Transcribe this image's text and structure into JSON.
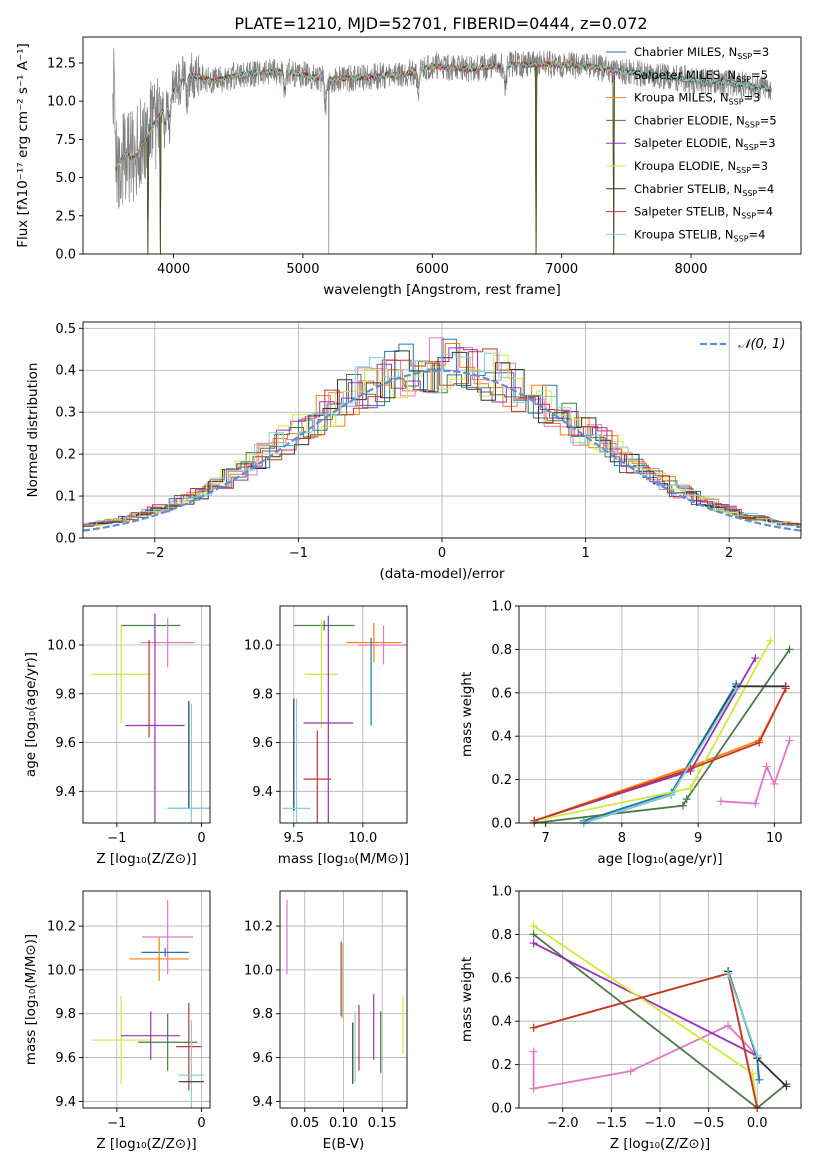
{
  "figure": {
    "title": "PLATE=1210, MJD=52701, FIBERID=0444, z=0.072"
  },
  "chart_data": [
    {
      "id": "spectrum",
      "type": "line",
      "xlabel": "wavelength [Angstrom, rest frame]",
      "ylabel": "Flux [fλ10⁻¹⁷ erg cm⁻² s⁻¹ A⁻¹]",
      "xlim": [
        3300,
        8850
      ],
      "ylim": [
        0,
        14.2
      ],
      "xticks": [
        4000,
        5000,
        6000,
        7000,
        8000
      ],
      "yticks": [
        0.0,
        2.5,
        5.0,
        7.5,
        10.0,
        12.5
      ],
      "ytick_labels": [
        "0.0",
        "2.5",
        "5.0",
        "7.5",
        "10.0",
        "12.5"
      ],
      "grid": false,
      "legend_position": "right",
      "series": [
        {
          "name": "Chabrier MILES, N_SSP=3",
          "label_main": "Chabrier MILES, N",
          "label_sub": "SSP",
          "label_tail": "=3",
          "color": "#1f77b4"
        },
        {
          "name": "Salpeter MILES, N_SSP=5",
          "label_main": "Salpeter MILES, N",
          "label_sub": "SSP",
          "label_tail": "=5",
          "color": "#e377c2"
        },
        {
          "name": "Kroupa MILES, N_SSP=3",
          "label_main": "Kroupa MILES, N",
          "label_sub": "SSP",
          "label_tail": "=3",
          "color": "#ff7f0e"
        },
        {
          "name": "Chabrier ELODIE, N_SSP=5",
          "label_main": "Chabrier ELODIE, N",
          "label_sub": "SSP",
          "label_tail": "=5",
          "color": "#4a7a4a"
        },
        {
          "name": "Salpeter ELODIE, N_SSP=3",
          "label_main": "Salpeter ELODIE, N",
          "label_sub": "SSP",
          "label_tail": "=3",
          "color": "#9b30b8"
        },
        {
          "name": "Kroupa ELODIE, N_SSP=3",
          "label_main": "Kroupa ELODIE, N",
          "label_sub": "SSP",
          "label_tail": "=3",
          "color": "#d4e83a"
        },
        {
          "name": "Chabrier STELIB, N_SSP=4",
          "label_main": "Chabrier STELIB, N",
          "label_sub": "SSP",
          "label_tail": "=4",
          "color": "#333333"
        },
        {
          "name": "Salpeter STELIB, N_SSP=4",
          "label_main": "Salpeter STELIB, N",
          "label_sub": "SSP",
          "label_tail": "=4",
          "color": "#c0392b"
        },
        {
          "name": "Kroupa STELIB, N_SSP=4",
          "label_main": "Kroupa STELIB, N",
          "label_sub": "SSP",
          "label_tail": "=4",
          "color": "#7fd3d8"
        }
      ],
      "data_color": "#808080",
      "continuum_points": [
        [
          3550,
          5.6
        ],
        [
          3620,
          6.5
        ],
        [
          3700,
          6.3
        ],
        [
          3800,
          7.8
        ],
        [
          3900,
          9.2
        ],
        [
          4000,
          10.6
        ],
        [
          4100,
          11.8
        ],
        [
          4200,
          11.6
        ],
        [
          4300,
          11.3
        ],
        [
          4500,
          11.7
        ],
        [
          4700,
          11.9
        ],
        [
          4900,
          11.9
        ],
        [
          5200,
          11.4
        ],
        [
          5500,
          11.6
        ],
        [
          5800,
          11.8
        ],
        [
          6000,
          12.3
        ],
        [
          6300,
          12.1
        ],
        [
          6600,
          12.4
        ],
        [
          6900,
          12.4
        ],
        [
          7200,
          12.3
        ],
        [
          7500,
          11.9
        ],
        [
          7800,
          11.6
        ],
        [
          8000,
          11.4
        ],
        [
          8300,
          11.2
        ],
        [
          8600,
          10.8
        ]
      ],
      "absorption_lines": [
        3934,
        3969,
        4102,
        4861,
        5175,
        5893,
        6563
      ],
      "data_dropouts": [
        5200,
        6800
      ],
      "model_dropouts": [
        3800,
        3900,
        6800,
        7400
      ]
    },
    {
      "id": "residual-hist",
      "type": "bar",
      "xlabel": "(data-model)/error",
      "ylabel": "Normed distribution",
      "xlim": [
        -2.5,
        2.5
      ],
      "ylim": [
        0,
        0.515
      ],
      "xticks": [
        -2,
        -1,
        0,
        1,
        2
      ],
      "xtick_labels": [
        "−2",
        "−1",
        "0",
        "1",
        "2"
      ],
      "yticks": [
        0.0,
        0.1,
        0.2,
        0.3,
        0.4,
        0.5
      ],
      "ytick_labels": [
        "0.0",
        "0.1",
        "0.2",
        "0.3",
        "0.4",
        "0.5"
      ],
      "grid": true,
      "legend": "𝒩(0, 1)",
      "legend_position": "top-right",
      "reference_curve": {
        "type": "normal",
        "mean": 0,
        "sigma": 1,
        "color": "#5b8fd6"
      },
      "bin_width": 0.1,
      "histogram_colors": [
        "#1f77b4",
        "#e377c2",
        "#ff7f0e",
        "#4a7a4a",
        "#9b30b8",
        "#d4e83a",
        "#333333",
        "#c0392b",
        "#7fd3d8"
      ]
    },
    {
      "id": "age-vs-z",
      "type": "scatter",
      "xlabel": "Z [log₁₀(Z/Z⊙)]",
      "ylabel": "age  [log₁₀(age/yr)]",
      "xlim": [
        -1.4,
        0.1
      ],
      "ylim": [
        9.27,
        10.16
      ],
      "xticks": [
        -1,
        0
      ],
      "xtick_labels": [
        "−1",
        "0"
      ],
      "yticks": [
        9.4,
        9.6,
        9.8,
        10.0
      ],
      "ytick_labels": [
        "9.4",
        "9.6",
        "9.8",
        "10.0"
      ],
      "grid": true,
      "errorbars": [
        {
          "x": -0.6,
          "y": 10.08,
          "xerr": 0.35,
          "yerr": 0,
          "color": "#4a7a4a"
        },
        {
          "x": -0.43,
          "y": 10.01,
          "xerr": 0.28,
          "yerr": 0,
          "color": "#ff7f0e"
        },
        {
          "x": -0.4,
          "y": 10.01,
          "xerr": 0.32,
          "yerr": 0.1,
          "color": "#e377c2"
        },
        {
          "x": -0.95,
          "y": 9.88,
          "xerr": 0.35,
          "yerr": 0.2,
          "color": "#d4e83a"
        },
        {
          "x": -0.55,
          "y": 9.67,
          "xerr": 0.35,
          "yerr": 0.46,
          "color": "#9b30b8"
        },
        {
          "x": -0.62,
          "y": 9.82,
          "xerr": 0,
          "yerr": 0.2,
          "color": "#c0392b"
        },
        {
          "x": -0.15,
          "y": 9.55,
          "xerr": 0,
          "yerr": 0.22,
          "color": "#333333"
        },
        {
          "x": -0.15,
          "y": 9.33,
          "xerr": 0.25,
          "yerr": 0,
          "color": "#1f77b4"
        },
        {
          "x": -0.12,
          "y": 9.33,
          "xerr": 0.28,
          "yerr": 0.43,
          "color": "#7fd3d8"
        }
      ]
    },
    {
      "id": "age-vs-mass",
      "type": "scatter",
      "xlabel": "mass [log₁₀(M/M⊙)]",
      "ylabel": "",
      "xlim": [
        9.4,
        10.32
      ],
      "ylim": [
        9.27,
        10.16
      ],
      "xticks": [
        9.5,
        10.0
      ],
      "xtick_labels": [
        "9.5",
        "10.0"
      ],
      "yticks": [
        9.4,
        9.6,
        9.8,
        10.0
      ],
      "ytick_labels": [
        "9.4",
        "9.6",
        "9.8",
        "10.0"
      ],
      "grid": true,
      "errorbars": [
        {
          "x": 9.72,
          "y": 10.08,
          "xerr": 0.22,
          "yerr": 0.02,
          "color": "#4a7a4a"
        },
        {
          "x": 10.08,
          "y": 10.01,
          "xerr": 0.2,
          "yerr": 0.08,
          "color": "#ff7f0e"
        },
        {
          "x": 10.15,
          "y": 10.0,
          "xerr": 0.18,
          "yerr": 0.08,
          "color": "#e377c2"
        },
        {
          "x": 9.7,
          "y": 9.88,
          "xerr": 0.12,
          "yerr": 0.22,
          "color": "#d4e83a"
        },
        {
          "x": 9.75,
          "y": 9.68,
          "xerr": 0.18,
          "yerr": 0.44,
          "color": "#9b30b8"
        },
        {
          "x": 9.67,
          "y": 9.45,
          "xerr": 0.1,
          "yerr": 0.2,
          "color": "#c0392b"
        },
        {
          "x": 9.5,
          "y": 9.55,
          "xerr": 0,
          "yerr": 0.23,
          "color": "#333333"
        },
        {
          "x": 10.06,
          "y": 9.85,
          "xerr": 0,
          "yerr": 0.18,
          "color": "#1f77b4"
        },
        {
          "x": 9.52,
          "y": 9.33,
          "xerr": 0.1,
          "yerr": 0.45,
          "color": "#7fd3d8"
        }
      ]
    },
    {
      "id": "weight-vs-age",
      "type": "line",
      "xlabel": "age  [log₁₀(age/yr)]",
      "ylabel": "mass weight",
      "xlim": [
        6.65,
        10.35
      ],
      "ylim": [
        0,
        1.0
      ],
      "xticks": [
        7,
        8,
        9,
        10
      ],
      "xtick_labels": [
        "7",
        "8",
        "9",
        "10"
      ],
      "yticks": [
        0.0,
        0.2,
        0.4,
        0.6,
        0.8,
        1.0
      ],
      "ytick_labels": [
        "0.0",
        "0.2",
        "0.4",
        "0.6",
        "0.8",
        "1.0"
      ],
      "grid": true,
      "series": [
        {
          "name": "Chabrier MILES",
          "color": "#1f77b4",
          "x": [
            7.5,
            8.65,
            9.5
          ],
          "y": [
            0.01,
            0.14,
            0.64
          ]
        },
        {
          "name": "Salpeter MILES",
          "color": "#e377c2",
          "x": [
            9.3,
            9.75,
            9.9,
            10.0,
            10.2
          ],
          "y": [
            0.1,
            0.09,
            0.26,
            0.18,
            0.38
          ]
        },
        {
          "name": "Kroupa MILES",
          "color": "#ff7f0e",
          "x": [
            6.85,
            8.9,
            9.8,
            10.15
          ],
          "y": [
            0.01,
            0.26,
            0.38,
            0.62
          ]
        },
        {
          "name": "Chabrier ELODIE",
          "color": "#4a7a4a",
          "x": [
            6.85,
            8.8,
            8.85,
            10.2
          ],
          "y": [
            0.0,
            0.08,
            0.11,
            0.8
          ]
        },
        {
          "name": "Salpeter ELODIE",
          "color": "#9b30b8",
          "x": [
            6.85,
            8.9,
            9.75
          ],
          "y": [
            0.01,
            0.24,
            0.76
          ]
        },
        {
          "name": "Kroupa ELODIE",
          "color": "#d4e83a",
          "x": [
            6.85,
            8.9,
            9.95
          ],
          "y": [
            0.01,
            0.16,
            0.84
          ]
        },
        {
          "name": "Chabrier STELIB",
          "color": "#333333",
          "x": [
            7.5,
            8.65,
            9.5,
            10.15
          ],
          "y": [
            0.0,
            0.13,
            0.63,
            0.63
          ]
        },
        {
          "name": "Salpeter STELIB",
          "color": "#c0392b",
          "x": [
            6.85,
            8.9,
            9.8,
            10.15
          ],
          "y": [
            0.01,
            0.25,
            0.37,
            0.62
          ]
        },
        {
          "name": "Kroupa STELIB",
          "color": "#7fd3d8",
          "x": [
            7.5,
            8.65,
            9.5
          ],
          "y": [
            0.0,
            0.13,
            0.62
          ]
        }
      ]
    },
    {
      "id": "mass-vs-z",
      "type": "scatter",
      "xlabel": "Z [log₁₀(Z/Z⊙)]",
      "ylabel": "mass [log₁₀(M/M⊙)]",
      "xlim": [
        -1.4,
        0.1
      ],
      "ylim": [
        9.37,
        10.36
      ],
      "xticks": [
        -1,
        0
      ],
      "xtick_labels": [
        "−1",
        "0"
      ],
      "yticks": [
        9.4,
        9.6,
        9.8,
        10.0,
        10.2
      ],
      "ytick_labels": [
        "9.4",
        "9.6",
        "9.8",
        "10.0",
        "10.2"
      ],
      "grid": true,
      "errorbars": [
        {
          "x": -0.4,
          "y": 10.15,
          "xerr": 0.3,
          "yerr": 0.17,
          "color": "#e377c2"
        },
        {
          "x": -0.43,
          "y": 10.08,
          "xerr": 0.28,
          "yerr": 0.02,
          "color": "#1f77b4"
        },
        {
          "x": -0.5,
          "y": 10.05,
          "xerr": 0.35,
          "yerr": 0.1,
          "color": "#ff7f0e"
        },
        {
          "x": -0.95,
          "y": 9.68,
          "xerr": 0.35,
          "yerr": 0.2,
          "color": "#d4e83a"
        },
        {
          "x": -0.6,
          "y": 9.7,
          "xerr": 0.35,
          "yerr": 0.11,
          "color": "#9b30b8"
        },
        {
          "x": -0.4,
          "y": 9.67,
          "xerr": 0.35,
          "yerr": 0.13,
          "color": "#4a7a4a"
        },
        {
          "x": -0.15,
          "y": 9.65,
          "xerr": 0.15,
          "yerr": 0.2,
          "color": "#c0392b"
        },
        {
          "x": -0.12,
          "y": 9.52,
          "xerr": 0.15,
          "yerr": 0.25,
          "color": "#7fd3d8"
        },
        {
          "x": -0.12,
          "y": 9.49,
          "xerr": 0.15,
          "yerr": 0.0,
          "color": "#333333"
        }
      ]
    },
    {
      "id": "mass-vs-ebv",
      "type": "scatter",
      "xlabel": "E(B-V)",
      "ylabel": "",
      "xlim": [
        0.018,
        0.182
      ],
      "ylim": [
        9.37,
        10.36
      ],
      "xticks": [
        0.05,
        0.1,
        0.15
      ],
      "xtick_labels": [
        "0.05",
        "0.10",
        "0.15"
      ],
      "yticks": [
        9.4,
        9.6,
        9.8,
        10.0,
        10.2
      ],
      "ytick_labels": [
        "9.4",
        "9.6",
        "9.8",
        "10.0",
        "10.2"
      ],
      "grid": true,
      "errorbars": [
        {
          "x": 0.027,
          "y": 10.15,
          "xerr": 0,
          "yerr": 0.17,
          "color": "#e377c2"
        },
        {
          "x": 0.097,
          "y": 9.96,
          "xerr": 0,
          "yerr": 0.17,
          "color": "#1f77b4"
        },
        {
          "x": 0.098,
          "y": 9.95,
          "xerr": 0,
          "yerr": 0.17,
          "color": "#ff7f0e"
        },
        {
          "x": 0.177,
          "y": 9.75,
          "xerr": 0,
          "yerr": 0.13,
          "color": "#d4e83a"
        },
        {
          "x": 0.139,
          "y": 9.74,
          "xerr": 0,
          "yerr": 0.15,
          "color": "#9b30b8"
        },
        {
          "x": 0.148,
          "y": 9.67,
          "xerr": 0,
          "yerr": 0.14,
          "color": "#4a7a4a"
        },
        {
          "x": 0.12,
          "y": 9.69,
          "xerr": 0,
          "yerr": 0.15,
          "color": "#c0392b"
        },
        {
          "x": 0.115,
          "y": 9.65,
          "xerr": 0,
          "yerr": 0.16,
          "color": "#7fd3d8"
        },
        {
          "x": 0.112,
          "y": 9.62,
          "xerr": 0,
          "yerr": 0.14,
          "color": "#333333"
        }
      ]
    },
    {
      "id": "weight-vs-z",
      "type": "line",
      "xlabel": "Z [log₁₀(Z/Z⊙)]",
      "ylabel": "mass weight",
      "xlim": [
        -2.45,
        0.45
      ],
      "ylim": [
        0,
        1.0
      ],
      "xticks": [
        -2.0,
        -1.5,
        -1.0,
        -0.5,
        0.0
      ],
      "xtick_labels": [
        "−2.0",
        "−1.5",
        "−1.0",
        "−0.5",
        "0.0"
      ],
      "yticks": [
        0.0,
        0.2,
        0.4,
        0.6,
        0.8,
        1.0
      ],
      "ytick_labels": [
        "0.0",
        "0.2",
        "0.4",
        "0.6",
        "0.8",
        "1.0"
      ],
      "grid": true,
      "series": [
        {
          "name": "Chabrier MILES",
          "color": "#1f77b4",
          "x": [
            -0.3,
            0.0,
            0.02
          ],
          "y": [
            0.63,
            0.23,
            0.13
          ]
        },
        {
          "name": "Salpeter MILES",
          "color": "#e377c2",
          "x": [
            -2.3,
            -2.3,
            -1.3,
            -0.3,
            0.0
          ],
          "y": [
            0.26,
            0.09,
            0.17,
            0.38,
            0.24
          ]
        },
        {
          "name": "Kroupa MILES",
          "color": "#ff7f0e",
          "x": [
            -2.3,
            -0.3,
            0.0
          ],
          "y": [
            0.37,
            0.62,
            0.01
          ]
        },
        {
          "name": "Chabrier ELODIE",
          "color": "#4a7a4a",
          "x": [
            -2.3,
            0.0,
            0.3
          ],
          "y": [
            0.8,
            0.0,
            0.11
          ]
        },
        {
          "name": "Salpeter ELODIE",
          "color": "#9b30b8",
          "x": [
            -2.3,
            0.0
          ],
          "y": [
            0.76,
            0.24
          ]
        },
        {
          "name": "Kroupa ELODIE",
          "color": "#d4e83a",
          "x": [
            -2.3,
            -0.05,
            0.0
          ],
          "y": [
            0.84,
            0.16,
            0.0
          ]
        },
        {
          "name": "Chabrier STELIB",
          "color": "#333333",
          "x": [
            -0.3,
            0.0,
            0.3
          ],
          "y": [
            0.63,
            0.23,
            0.1
          ]
        },
        {
          "name": "Salpeter STELIB",
          "color": "#c0392b",
          "x": [
            -2.3,
            -0.3,
            0.0
          ],
          "y": [
            0.37,
            0.62,
            0.0
          ]
        },
        {
          "name": "Kroupa STELIB",
          "color": "#7fd3d8",
          "x": [
            -0.3,
            0.0
          ],
          "y": [
            0.62,
            0.24
          ]
        }
      ]
    }
  ]
}
